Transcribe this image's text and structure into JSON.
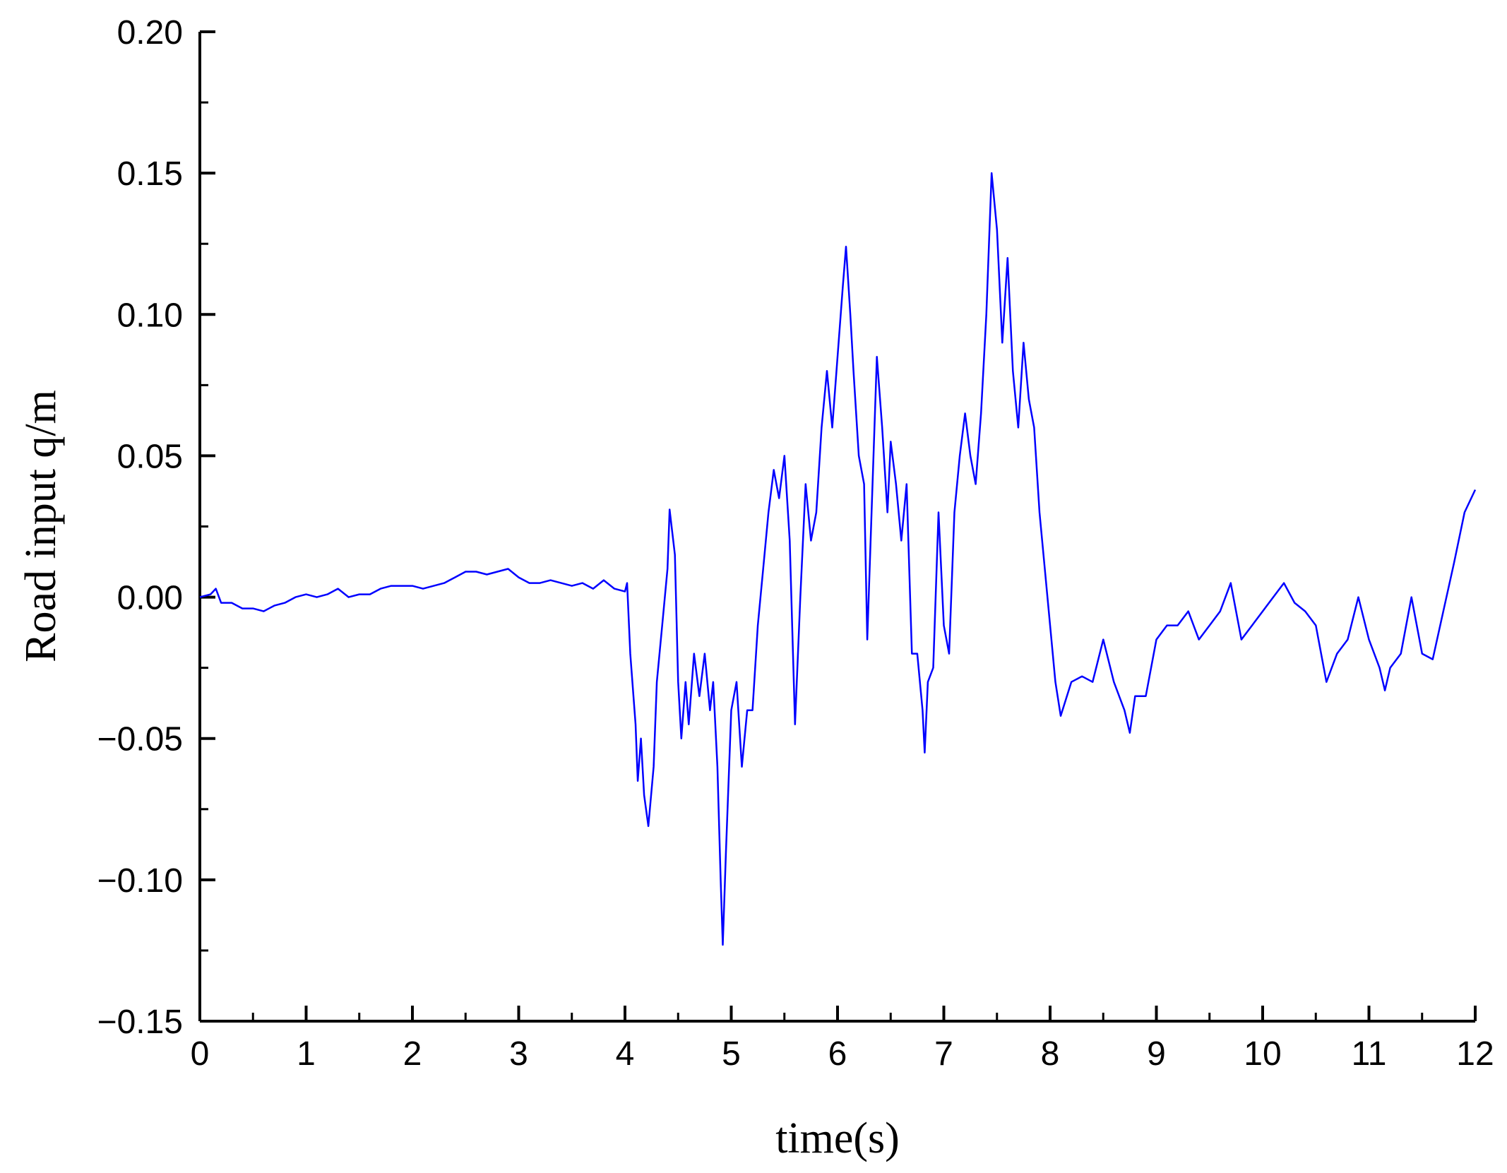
{
  "chart_data": {
    "type": "line",
    "xlabel": "time(s)",
    "ylabel": "Road input q/m",
    "color": "#0000ff",
    "xlim": [
      0,
      12
    ],
    "ylim": [
      -0.15,
      0.2
    ],
    "xticks": [
      0,
      1,
      2,
      3,
      4,
      5,
      6,
      7,
      8,
      9,
      10,
      11,
      12
    ],
    "yticks": [
      {
        "value": -0.15,
        "label": "−0.15"
      },
      {
        "value": -0.1,
        "label": "−0.10"
      },
      {
        "value": -0.05,
        "label": "−0.05"
      },
      {
        "value": 0,
        "label": "0.00"
      },
      {
        "value": 0.05,
        "label": "0.05"
      },
      {
        "value": 0.1,
        "label": "0.10"
      },
      {
        "value": 0.15,
        "label": "0.15"
      },
      {
        "value": 0.2,
        "label": "0.20"
      }
    ],
    "x": [
      0,
      0.1,
      0.15,
      0.2,
      0.3,
      0.4,
      0.5,
      0.6,
      0.7,
      0.8,
      0.9,
      1.0,
      1.1,
      1.2,
      1.3,
      1.4,
      1.5,
      1.6,
      1.7,
      1.8,
      1.9,
      2.0,
      2.1,
      2.2,
      2.3,
      2.4,
      2.5,
      2.6,
      2.7,
      2.8,
      2.9,
      3.0,
      3.1,
      3.2,
      3.3,
      3.4,
      3.5,
      3.6,
      3.7,
      3.8,
      3.9,
      4.0,
      4.02,
      4.05,
      4.1,
      4.12,
      4.15,
      4.18,
      4.22,
      4.27,
      4.3,
      4.35,
      4.4,
      4.42,
      4.47,
      4.5,
      4.53,
      4.57,
      4.6,
      4.65,
      4.7,
      4.75,
      4.8,
      4.83,
      4.87,
      4.9,
      4.92,
      4.95,
      5.0,
      5.05,
      5.1,
      5.15,
      5.2,
      5.25,
      5.3,
      5.35,
      5.4,
      5.45,
      5.5,
      5.55,
      5.6,
      5.65,
      5.7,
      5.75,
      5.8,
      5.85,
      5.9,
      5.95,
      6.0,
      6.05,
      6.08,
      6.12,
      6.15,
      6.2,
      6.25,
      6.28,
      6.32,
      6.37,
      6.42,
      6.47,
      6.5,
      6.55,
      6.6,
      6.65,
      6.7,
      6.75,
      6.8,
      6.82,
      6.85,
      6.9,
      6.95,
      7.0,
      7.05,
      7.1,
      7.15,
      7.2,
      7.25,
      7.3,
      7.35,
      7.4,
      7.45,
      7.5,
      7.55,
      7.6,
      7.65,
      7.7,
      7.75,
      7.8,
      7.85,
      7.9,
      7.95,
      8.0,
      8.05,
      8.1,
      8.2,
      8.3,
      8.4,
      8.5,
      8.6,
      8.7,
      8.75,
      8.8,
      8.9,
      9.0,
      9.1,
      9.2,
      9.3,
      9.4,
      9.5,
      9.6,
      9.7,
      9.8,
      9.9,
      10.0,
      10.1,
      10.2,
      10.3,
      10.4,
      10.5,
      10.6,
      10.7,
      10.8,
      10.9,
      11.0,
      11.1,
      11.15,
      11.2,
      11.3,
      11.4,
      11.5,
      11.6,
      11.7,
      11.8,
      11.9,
      12.0
    ],
    "values": [
      0.0,
      0.001,
      0.003,
      -0.002,
      -0.002,
      -0.004,
      -0.004,
      -0.005,
      -0.003,
      -0.002,
      0.0,
      0.001,
      0.0,
      0.001,
      0.003,
      0.0,
      0.001,
      0.001,
      0.003,
      0.004,
      0.004,
      0.004,
      0.003,
      0.004,
      0.005,
      0.007,
      0.009,
      0.009,
      0.008,
      0.009,
      0.01,
      0.007,
      0.005,
      0.005,
      0.006,
      0.005,
      0.004,
      0.005,
      0.003,
      0.006,
      0.003,
      0.002,
      0.005,
      -0.02,
      -0.045,
      -0.065,
      -0.05,
      -0.07,
      -0.081,
      -0.06,
      -0.03,
      -0.01,
      0.01,
      0.031,
      0.015,
      -0.03,
      -0.05,
      -0.03,
      -0.045,
      -0.02,
      -0.035,
      -0.02,
      -0.04,
      -0.03,
      -0.06,
      -0.1,
      -0.123,
      -0.09,
      -0.04,
      -0.03,
      -0.06,
      -0.04,
      -0.04,
      -0.01,
      0.01,
      0.03,
      0.045,
      0.035,
      0.05,
      0.02,
      -0.045,
      0.0,
      0.04,
      0.02,
      0.03,
      0.06,
      0.08,
      0.06,
      0.085,
      0.11,
      0.124,
      0.1,
      0.08,
      0.05,
      0.04,
      -0.015,
      0.03,
      0.085,
      0.06,
      0.03,
      0.055,
      0.04,
      0.02,
      0.04,
      -0.02,
      -0.02,
      -0.04,
      -0.055,
      -0.03,
      -0.025,
      0.03,
      -0.01,
      -0.02,
      0.03,
      0.05,
      0.065,
      0.05,
      0.04,
      0.065,
      0.1,
      0.15,
      0.13,
      0.09,
      0.12,
      0.08,
      0.06,
      0.09,
      0.07,
      0.06,
      0.03,
      0.01,
      -0.01,
      -0.03,
      -0.042,
      -0.03,
      -0.028,
      -0.03,
      -0.015,
      -0.03,
      -0.04,
      -0.048,
      -0.035,
      -0.035,
      -0.015,
      -0.01,
      -0.01,
      -0.005,
      -0.015,
      -0.01,
      -0.005,
      0.005,
      -0.015,
      -0.01,
      -0.005,
      0.0,
      0.005,
      -0.002,
      -0.005,
      -0.01,
      -0.03,
      -0.02,
      -0.015,
      0.0,
      -0.015,
      -0.025,
      -0.033,
      -0.025,
      -0.02,
      0.0,
      -0.02,
      -0.022,
      -0.005,
      0.012,
      0.03,
      0.038
    ]
  }
}
